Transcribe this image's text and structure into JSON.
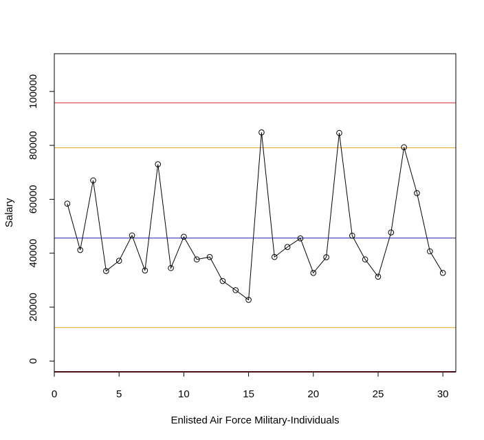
{
  "chart_data": {
    "type": "line",
    "title": "",
    "xlabel": "Enlisted Air Force Military-Individuals",
    "ylabel": "Salary",
    "xlim": [
      0,
      31
    ],
    "ylim": [
      -4000,
      114000
    ],
    "x_ticks": [
      0,
      5,
      10,
      15,
      20,
      25,
      30
    ],
    "y_ticks": [
      0,
      20000,
      40000,
      60000,
      80000,
      100000
    ],
    "grid": false,
    "series": [
      {
        "color": "#000000",
        "marker": "open-circle",
        "x": [
          1,
          2,
          3,
          4,
          5,
          6,
          7,
          8,
          9,
          10,
          11,
          12,
          13,
          14,
          15,
          16,
          17,
          18,
          19,
          20,
          21,
          22,
          23,
          24,
          25,
          26,
          27,
          28,
          29,
          30
        ],
        "values": [
          58400,
          41200,
          67000,
          33400,
          37200,
          46600,
          33600,
          73000,
          34500,
          46100,
          37700,
          38600,
          29700,
          26300,
          22700,
          84800,
          38600,
          42300,
          45500,
          32700,
          38500,
          84600,
          46500,
          37700,
          31300,
          47700,
          79300,
          62300,
          40700,
          32700
        ]
      }
    ],
    "reference_lines": [
      {
        "kind": "horizontal",
        "y": 95800,
        "color": "#df2a2a"
      },
      {
        "kind": "horizontal",
        "y": 79100,
        "color": "#e8a317"
      },
      {
        "kind": "horizontal",
        "y": 45600,
        "color": "#1f1fa8"
      },
      {
        "kind": "horizontal",
        "y": 12400,
        "color": "#e8a317"
      },
      {
        "kind": "horizontal",
        "y": -4000,
        "color": "#8b1a2b"
      }
    ]
  }
}
